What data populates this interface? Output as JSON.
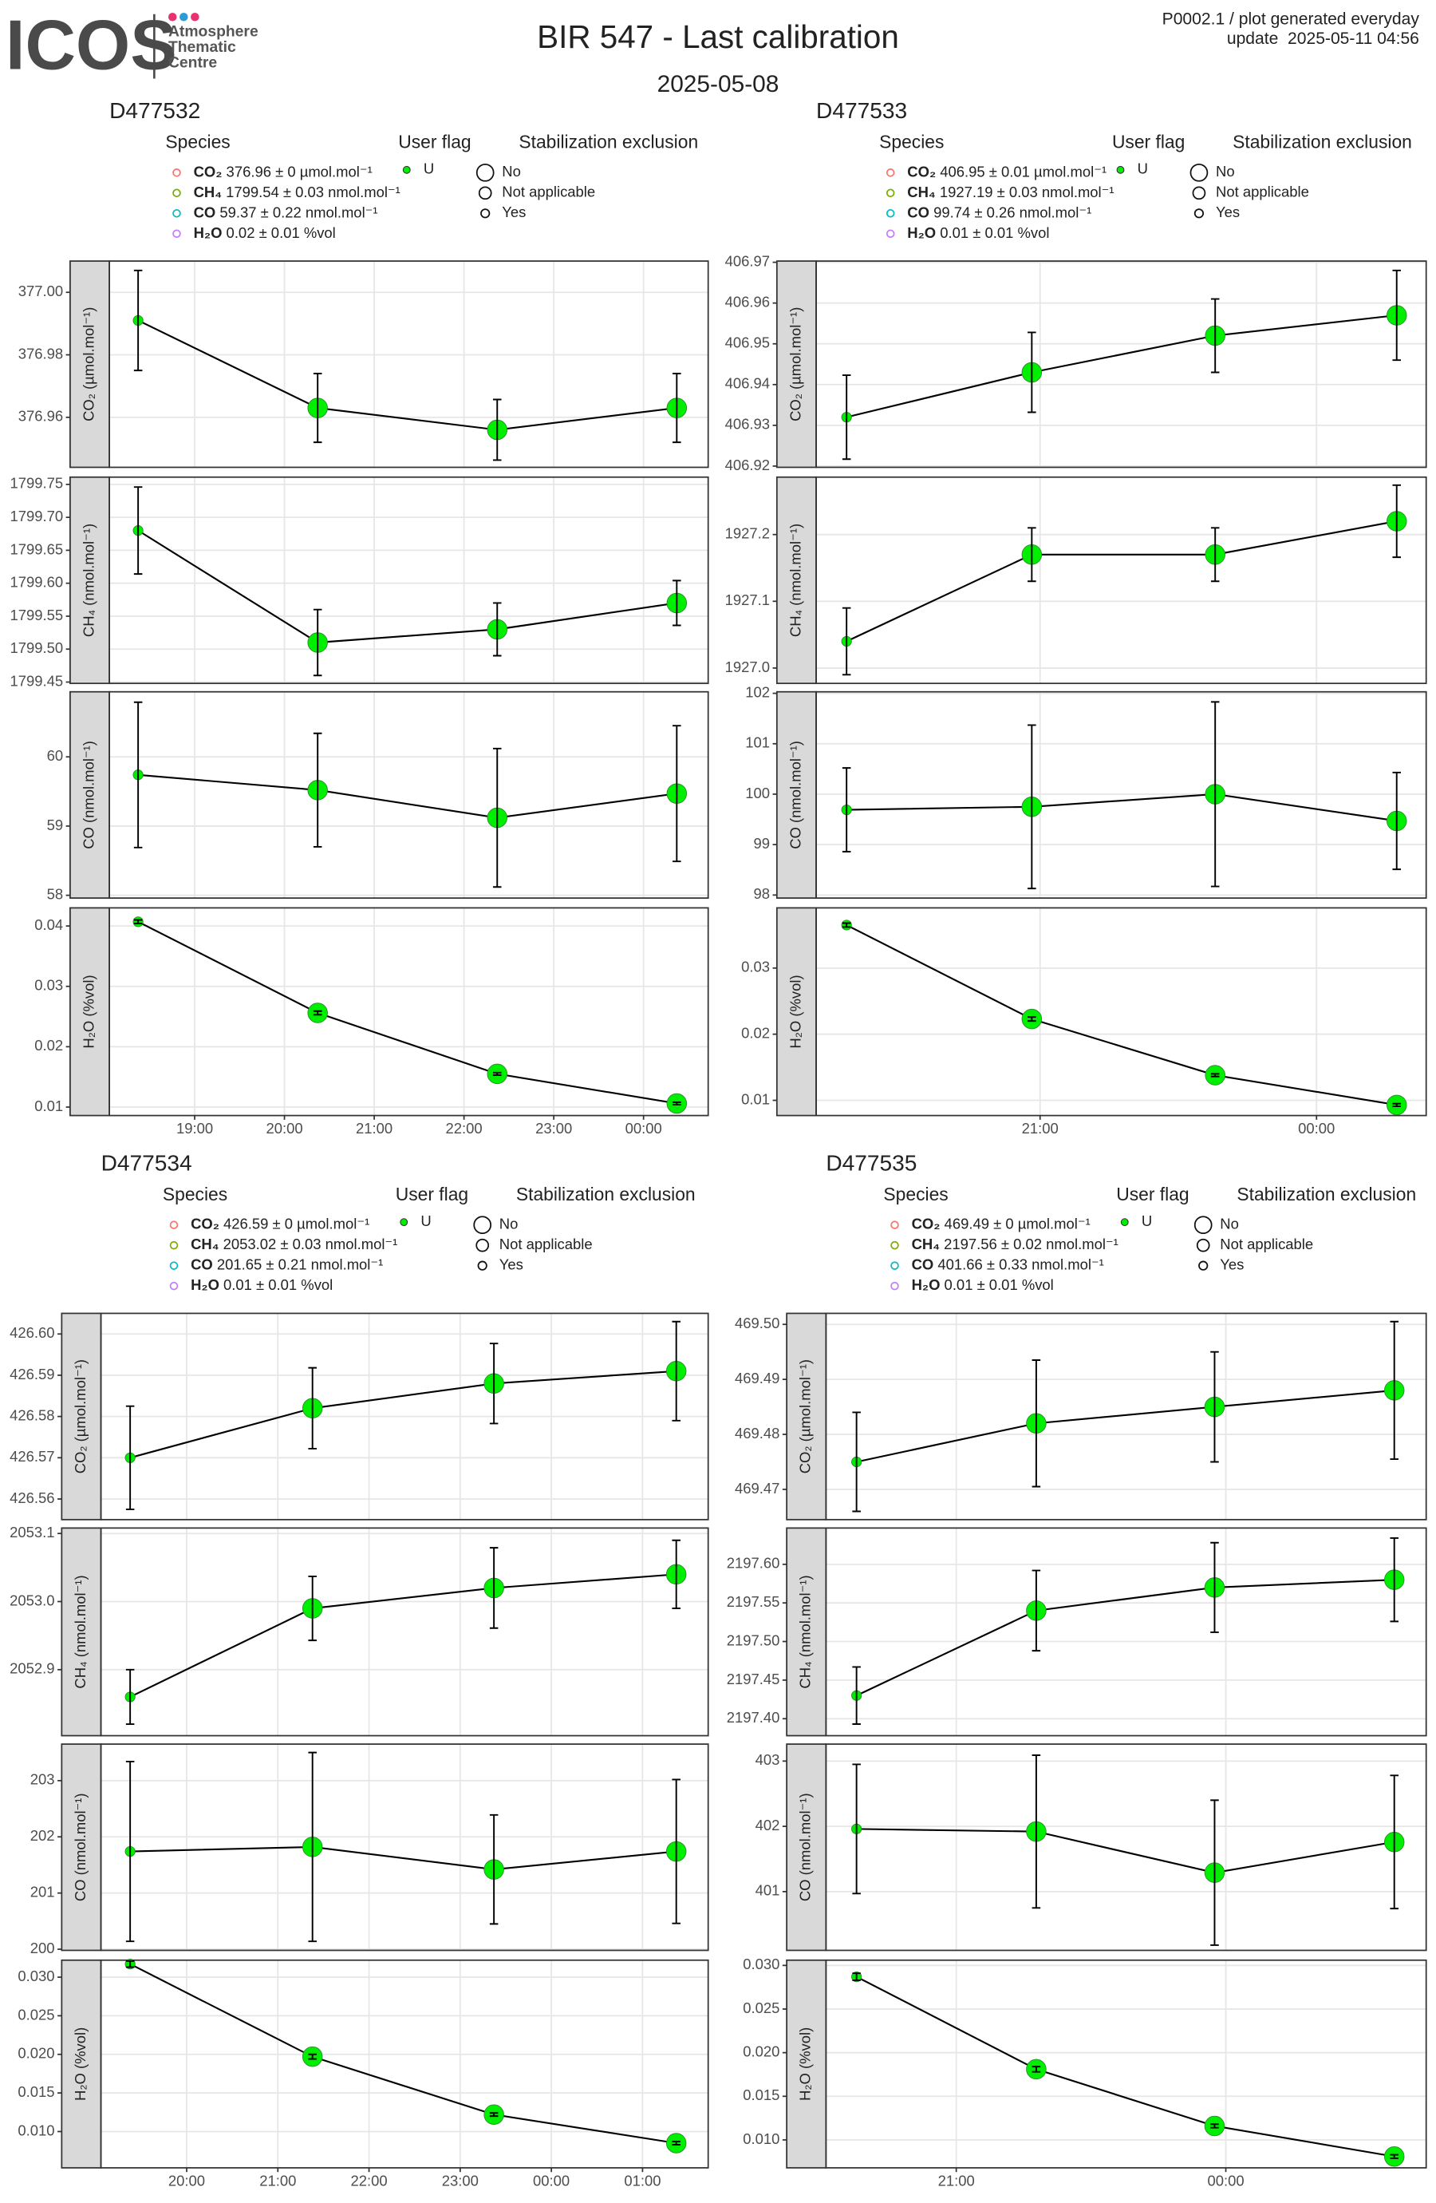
{
  "header": {
    "logo": "ICOS",
    "logo_sub": [
      "Atmosphere",
      "Thematic",
      "Centre"
    ],
    "title": "BIR 547 - Last calibration",
    "subtitle": "2025-05-08",
    "note": "P0002.1 / plot generated everyday",
    "update": "update  2025-05-11 04:56"
  },
  "chart_data": [
    {
      "type": "line",
      "title": "D477532",
      "color": "#00ee00",
      "grid": true,
      "legend": {
        "species_title": "Species",
        "species": [
          {
            "name": "CO₂",
            "text": " 376.96 ± 0 µmol.mol⁻¹",
            "color": "#f8766d"
          },
          {
            "name": "CH₄",
            "text": " 1799.54 ± 0.03 nmol.mol⁻¹",
            "color": "#7cae00"
          },
          {
            "name": "CO",
            "text": " 59.37 ± 0.22 nmol.mol⁻¹",
            "color": "#00bfc4"
          },
          {
            "name": "H₂O",
            "text": " 0.02 ± 0.01 %vol",
            "color": "#c77cff"
          }
        ],
        "flag_title": "User flag",
        "flags": [
          {
            "name": "U",
            "color": "#00ee00"
          }
        ],
        "exclusion_title": "Stabilization exclusion",
        "exclusion": [
          "No",
          "Not applicable",
          "Yes"
        ]
      },
      "x": [
        18.37,
        20.37,
        22.37,
        24.37
      ],
      "xlim": [
        18.05,
        24.72
      ],
      "xticks": [
        {
          "value": 19,
          "label": "19:00"
        },
        {
          "value": 20,
          "label": "20:00"
        },
        {
          "value": 21,
          "label": "21:00"
        },
        {
          "value": 22,
          "label": "22:00"
        },
        {
          "value": 23,
          "label": "23:00"
        },
        {
          "value": 24,
          "label": "00:00"
        }
      ],
      "panels": [
        {
          "ylabel": "CO₂ (µmol.mol⁻¹)",
          "values": [
            376.991,
            376.963,
            376.956,
            376.963
          ],
          "errors": [
            0.016,
            0.011,
            0.0097,
            0.011
          ],
          "stabilization": [
            "Yes",
            "No",
            "No",
            "No"
          ],
          "ylim": [
            376.944,
            377.01
          ],
          "yticks": [
            376.96,
            376.98,
            {
              "value": 377,
              "label": "377.00"
            }
          ]
        },
        {
          "ylabel": "CH₄ (nmol.mol⁻¹)",
          "values": [
            1799.68,
            1799.51,
            1799.53,
            1799.57
          ],
          "errors": [
            0.066,
            0.05,
            0.04,
            0.034
          ],
          "stabilization": [
            "Yes",
            "No",
            "No",
            "No"
          ],
          "ylim": [
            1799.448,
            1799.761
          ],
          "yticks": [
            1799.45,
            {
              "value": 1799.5,
              "label": "1799.50"
            },
            1799.55,
            {
              "value": 1799.6,
              "label": "1799.60"
            },
            1799.65,
            {
              "value": 1799.7,
              "label": "1799.70"
            },
            1799.75
          ]
        },
        {
          "ylabel": "CO (nmol.mol⁻¹)",
          "values": [
            59.74,
            59.52,
            59.12,
            59.47
          ],
          "errors": [
            1.05,
            0.82,
            1.0,
            0.98
          ],
          "stabilization": [
            "Yes",
            "No",
            "No",
            "No"
          ],
          "ylim": [
            57.96,
            60.94
          ],
          "yticks": [
            58,
            59,
            60
          ]
        },
        {
          "ylabel": "H₂O (%vol)",
          "values": [
            0.0407,
            0.0256,
            0.0155,
            0.0106
          ],
          "errors": [
            0.0003,
            0.0003,
            0.0002,
            0.0002
          ],
          "stabilization": [
            "Yes",
            "No",
            "No",
            "No"
          ],
          "ylim": [
            0.0086,
            0.043
          ],
          "yticks": [
            0.01,
            0.02,
            0.03,
            0.04
          ]
        }
      ]
    },
    {
      "type": "line",
      "title": "D477533",
      "color": "#00ee00",
      "grid": true,
      "legend": {
        "species_title": "Species",
        "species": [
          {
            "name": "CO₂",
            "text": " 406.95 ± 0.01 µmol.mol⁻¹",
            "color": "#f8766d"
          },
          {
            "name": "CH₄",
            "text": " 1927.19 ± 0.03 nmol.mol⁻¹",
            "color": "#7cae00"
          },
          {
            "name": "CO",
            "text": " 99.74 ± 0.26 nmol.mol⁻¹",
            "color": "#00bfc4"
          },
          {
            "name": "H₂O",
            "text": " 0.01 ± 0.01 %vol",
            "color": "#c77cff"
          }
        ],
        "flag_title": "User flag",
        "flags": [
          {
            "name": "U",
            "color": "#00ee00"
          }
        ],
        "exclusion_title": "Stabilization exclusion",
        "exclusion": [
          "No",
          "Not applicable",
          "Yes"
        ]
      },
      "x": [
        18.9,
        20.91,
        22.9,
        24.87
      ],
      "xlim": [
        18.57,
        25.19
      ],
      "xticks": [
        {
          "value": 21,
          "label": "21:00"
        },
        {
          "value": 24,
          "label": "00:00"
        }
      ],
      "panels": [
        {
          "ylabel": "CO₂ (µmol.mol⁻¹)",
          "values": [
            406.932,
            406.943,
            406.952,
            406.957
          ],
          "errors": [
            0.0103,
            0.0098,
            0.009,
            0.011
          ],
          "stabilization": [
            "Yes",
            "No",
            "No",
            "No"
          ],
          "ylim": [
            406.9197,
            406.9703
          ],
          "yticks": [
            406.92,
            406.93,
            406.94,
            406.95,
            406.96,
            406.97
          ]
        },
        {
          "ylabel": "CH₄ (nmol.mol⁻¹)",
          "values": [
            1927.04,
            1927.17,
            1927.17,
            1927.22
          ],
          "errors": [
            0.05,
            0.04,
            0.04,
            0.054
          ],
          "stabilization": [
            "Yes",
            "No",
            "No",
            "No"
          ],
          "ylim": [
            1926.977,
            1927.286
          ],
          "yticks": [
            {
              "value": 1927,
              "label": "1927.0"
            },
            1927.1,
            1927.2
          ]
        },
        {
          "ylabel": "CO (nmol.mol⁻¹)",
          "values": [
            99.69,
            99.75,
            100.0,
            99.47
          ],
          "errors": [
            0.83,
            1.62,
            1.83,
            0.96
          ],
          "stabilization": [
            "Yes",
            "No",
            "No",
            "No"
          ],
          "ylim": [
            97.94,
            102.03
          ],
          "yticks": [
            98,
            99,
            100,
            101,
            102
          ]
        },
        {
          "ylabel": "H₂O (%vol)",
          "values": [
            0.0365,
            0.0223,
            0.0138,
            0.0093
          ],
          "errors": [
            0.0003,
            0.0003,
            0.0002,
            0.0002
          ],
          "stabilization": [
            "Yes",
            "No",
            "No",
            "No"
          ],
          "ylim": [
            0.0077,
            0.0391
          ],
          "yticks": [
            0.01,
            0.02,
            0.03
          ]
        }
      ]
    },
    {
      "type": "line",
      "title": "D477534",
      "color": "#00ee00",
      "grid": true,
      "legend": {
        "species_title": "Species",
        "species": [
          {
            "name": "CO₂",
            "text": " 426.59 ± 0 µmol.mol⁻¹",
            "color": "#f8766d"
          },
          {
            "name": "CH₄",
            "text": " 2053.02 ± 0.03 nmol.mol⁻¹",
            "color": "#7cae00"
          },
          {
            "name": "CO",
            "text": " 201.65 ± 0.21 nmol.mol⁻¹",
            "color": "#00bfc4"
          },
          {
            "name": "H₂O",
            "text": " 0.01 ± 0.01 %vol",
            "color": "#c77cff"
          }
        ],
        "flag_title": "User flag",
        "flags": [
          {
            "name": "U",
            "color": "#00ee00"
          }
        ],
        "exclusion_title": "Stabilization exclusion",
        "exclusion": [
          "No",
          "Not applicable",
          "Yes"
        ]
      },
      "x": [
        19.38,
        21.38,
        23.37,
        25.37
      ],
      "xlim": [
        19.06,
        25.72
      ],
      "xticks": [
        {
          "value": 20,
          "label": "20:00"
        },
        {
          "value": 21,
          "label": "21:00"
        },
        {
          "value": 22,
          "label": "22:00"
        },
        {
          "value": 23,
          "label": "23:00"
        },
        {
          "value": 24,
          "label": "00:00"
        },
        {
          "value": 25,
          "label": "01:00"
        }
      ],
      "panels": [
        {
          "ylabel": "CO₂ (µmol.mol⁻¹)",
          "values": [
            426.57,
            426.582,
            426.588,
            426.591
          ],
          "errors": [
            0.0125,
            0.0098,
            0.0097,
            0.012
          ],
          "stabilization": [
            "Yes",
            "No",
            "No",
            "No"
          ],
          "ylim": [
            426.555,
            426.605
          ],
          "yticks": [
            426.56,
            426.57,
            426.58,
            426.59,
            {
              "value": 426.6,
              "label": "426.60"
            }
          ]
        },
        {
          "ylabel": "CH₄ (nmol.mol⁻¹)",
          "values": [
            2052.86,
            2052.99,
            2053.02,
            2053.04
          ],
          "errors": [
            0.04,
            0.047,
            0.059,
            0.05
          ],
          "stabilization": [
            "Yes",
            "No",
            "No",
            "No"
          ],
          "ylim": [
            2052.803,
            2053.108
          ],
          "yticks": [
            2052.9,
            {
              "value": 2053,
              "label": "2053.0"
            },
            2053.1
          ]
        },
        {
          "ylabel": "CO (nmol.mol⁻¹)",
          "values": [
            201.74,
            201.82,
            201.42,
            201.74
          ],
          "errors": [
            1.6,
            1.68,
            0.97,
            1.28
          ],
          "stabilization": [
            "Yes",
            "No",
            "No",
            "No"
          ],
          "ylim": [
            199.98,
            203.65
          ],
          "yticks": [
            200,
            201,
            202,
            203
          ]
        },
        {
          "ylabel": "H₂O (%vol)",
          "values": [
            0.0317,
            0.0197,
            0.0122,
            0.0085
          ],
          "errors": [
            0.0004,
            0.0003,
            0.0002,
            0.0002
          ],
          "stabilization": [
            "Yes",
            "No",
            "No",
            "No"
          ],
          "ylim": [
            0.0053,
            0.0322
          ],
          "yticks": [
            {
              "value": 0.01,
              "label": "0.010"
            },
            0.015,
            {
              "value": 0.02,
              "label": "0.020"
            },
            0.025,
            {
              "value": 0.03,
              "label": "0.030"
            }
          ]
        }
      ]
    },
    {
      "type": "line",
      "title": "D477535",
      "color": "#00ee00",
      "grid": true,
      "legend": {
        "species_title": "Species",
        "species": [
          {
            "name": "CO₂",
            "text": " 469.49 ± 0 µmol.mol⁻¹",
            "color": "#f8766d"
          },
          {
            "name": "CH₄",
            "text": " 2197.56 ± 0.02 nmol.mol⁻¹",
            "color": "#7cae00"
          },
          {
            "name": "CO",
            "text": " 401.66 ± 0.33 nmol.mol⁻¹",
            "color": "#00bfc4"
          },
          {
            "name": "H₂O",
            "text": " 0.01 ± 0.01 %vol",
            "color": "#c77cff"
          }
        ],
        "flag_title": "User flag",
        "flags": [
          {
            "name": "U",
            "color": "#00ee00"
          }
        ],
        "exclusion_title": "Stabilization exclusion",
        "exclusion": [
          "No",
          "Not applicable",
          "Yes"
        ]
      },
      "x": [
        19.89,
        21.89,
        23.875,
        25.875
      ],
      "xlim": [
        19.55,
        26.23
      ],
      "xticks": [
        {
          "value": 21,
          "label": "21:00"
        },
        {
          "value": 24,
          "label": "00:00"
        }
      ],
      "panels": [
        {
          "ylabel": "CO₂ (µmol.mol⁻¹)",
          "values": [
            469.475,
            469.482,
            469.485,
            469.488
          ],
          "errors": [
            0.009,
            0.0115,
            0.01,
            0.0125
          ],
          "stabilization": [
            "Yes",
            "No",
            "No",
            "No"
          ],
          "ylim": [
            469.4645,
            469.502
          ],
          "yticks": [
            469.47,
            469.48,
            469.49,
            {
              "value": 469.5,
              "label": "469.50"
            }
          ]
        },
        {
          "ylabel": "CH₄ (nmol.mol⁻¹)",
          "values": [
            2197.43,
            2197.54,
            2197.57,
            2197.58
          ],
          "errors": [
            0.037,
            0.052,
            0.058,
            0.054
          ],
          "stabilization": [
            "Yes",
            "No",
            "No",
            "No"
          ],
          "ylim": [
            2197.378,
            2197.647
          ],
          "yticks": [
            {
              "value": 2197.4,
              "label": "2197.40"
            },
            2197.45,
            {
              "value": 2197.5,
              "label": "2197.50"
            },
            2197.55,
            {
              "value": 2197.6,
              "label": "2197.60"
            }
          ]
        },
        {
          "ylabel": "CO (nmol.mol⁻¹)",
          "values": [
            401.96,
            401.92,
            401.29,
            401.76
          ],
          "errors": [
            0.99,
            1.17,
            1.11,
            1.02
          ],
          "stabilization": [
            "Yes",
            "No",
            "No",
            "No"
          ],
          "ylim": [
            400.1,
            403.26
          ],
          "yticks": [
            401,
            402,
            403
          ]
        },
        {
          "ylabel": "H₂O (%vol)",
          "values": [
            0.0287,
            0.0181,
            0.0116,
            0.0081
          ],
          "errors": [
            0.0004,
            0.0003,
            0.0002,
            0.0002
          ],
          "stabilization": [
            "Yes",
            "No",
            "No",
            "No"
          ],
          "ylim": [
            0.0068,
            0.0306
          ],
          "yticks": [
            {
              "value": 0.01,
              "label": "0.010"
            },
            0.015,
            {
              "value": 0.02,
              "label": "0.020"
            },
            0.025,
            {
              "value": 0.03,
              "label": "0.030"
            }
          ]
        }
      ]
    }
  ]
}
